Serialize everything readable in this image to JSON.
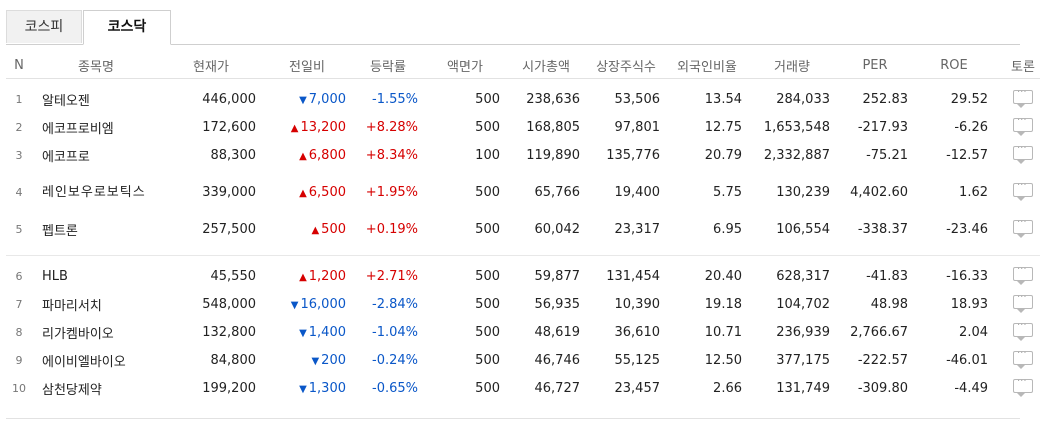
{
  "tabs": [
    {
      "label": "코스피",
      "active": false
    },
    {
      "label": "코스닥",
      "active": true
    }
  ],
  "columns": [
    "N",
    "종목명",
    "현재가",
    "전일비",
    "등락률",
    "액면가",
    "시가총액",
    "상장주식수",
    "외국인비율",
    "거래량",
    "PER",
    "ROE",
    "토론"
  ],
  "rows": [
    {
      "n": "1",
      "name": "알테오젠",
      "price": "446,000",
      "dir": "down",
      "change": "7,000",
      "rate": "-1.55%",
      "face": "500",
      "cap": "238,636",
      "shares": "53,506",
      "foreign": "13.54",
      "volume": "284,033",
      "per": "252.83",
      "roe": "29.52"
    },
    {
      "n": "2",
      "name": "에코프로비엠",
      "price": "172,600",
      "dir": "up",
      "change": "13,200",
      "rate": "+8.28%",
      "face": "500",
      "cap": "168,805",
      "shares": "97,801",
      "foreign": "12.75",
      "volume": "1,653,548",
      "per": "-217.93",
      "roe": "-6.26"
    },
    {
      "n": "3",
      "name": "에코프로",
      "price": "88,300",
      "dir": "up",
      "change": "6,800",
      "rate": "+8.34%",
      "face": "100",
      "cap": "119,890",
      "shares": "135,776",
      "foreign": "20.79",
      "volume": "2,332,887",
      "per": "-75.21",
      "roe": "-12.57"
    },
    {
      "n": "4",
      "name": "레인보우로보틱스",
      "price": "339,000",
      "dir": "up",
      "change": "6,500",
      "rate": "+1.95%",
      "face": "500",
      "cap": "65,766",
      "shares": "19,400",
      "foreign": "5.75",
      "volume": "130,239",
      "per": "4,402.60",
      "roe": "1.62"
    },
    {
      "n": "5",
      "name": "펩트론",
      "price": "257,500",
      "dir": "up",
      "change": "500",
      "rate": "+0.19%",
      "face": "500",
      "cap": "60,042",
      "shares": "23,317",
      "foreign": "6.95",
      "volume": "106,554",
      "per": "-338.37",
      "roe": "-23.46"
    },
    {
      "n": "6",
      "name": "HLB",
      "price": "45,550",
      "dir": "up",
      "change": "1,200",
      "rate": "+2.71%",
      "face": "500",
      "cap": "59,877",
      "shares": "131,454",
      "foreign": "20.40",
      "volume": "628,317",
      "per": "-41.83",
      "roe": "-16.33"
    },
    {
      "n": "7",
      "name": "파마리서치",
      "price": "548,000",
      "dir": "down",
      "change": "16,000",
      "rate": "-2.84%",
      "face": "500",
      "cap": "56,935",
      "shares": "10,390",
      "foreign": "19.18",
      "volume": "104,702",
      "per": "48.98",
      "roe": "18.93"
    },
    {
      "n": "8",
      "name": "리가켐바이오",
      "price": "132,800",
      "dir": "down",
      "change": "1,400",
      "rate": "-1.04%",
      "face": "500",
      "cap": "48,619",
      "shares": "36,610",
      "foreign": "10.71",
      "volume": "236,939",
      "per": "2,766.67",
      "roe": "2.04"
    },
    {
      "n": "9",
      "name": "에이비엘바이오",
      "price": "84,800",
      "dir": "down",
      "change": "200",
      "rate": "-0.24%",
      "face": "500",
      "cap": "46,746",
      "shares": "55,125",
      "foreign": "12.50",
      "volume": "377,175",
      "per": "-222.57",
      "roe": "-46.01"
    },
    {
      "n": "10",
      "name": "삼천당제약",
      "price": "199,200",
      "dir": "down",
      "change": "1,300",
      "rate": "-0.65%",
      "face": "500",
      "cap": "46,727",
      "shares": "23,457",
      "foreign": "2.66",
      "volume": "131,749",
      "per": "-309.80",
      "roe": "-4.49"
    }
  ],
  "icons": {
    "up": "triangle-up-icon",
    "down": "triangle-down-icon",
    "talk": "speech-bubble-icon"
  },
  "colors": {
    "up": "#d60000",
    "down": "#0a57c8"
  }
}
